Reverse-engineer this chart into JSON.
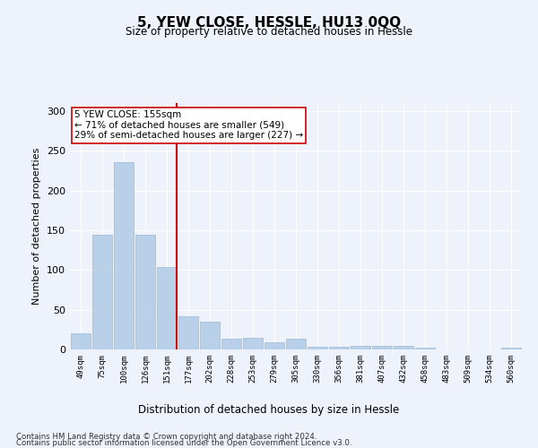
{
  "title": "5, YEW CLOSE, HESSLE, HU13 0QQ",
  "subtitle": "Size of property relative to detached houses in Hessle",
  "xlabel": "Distribution of detached houses by size in Hessle",
  "ylabel": "Number of detached properties",
  "categories": [
    "49sqm",
    "75sqm",
    "100sqm",
    "126sqm",
    "151sqm",
    "177sqm",
    "202sqm",
    "228sqm",
    "253sqm",
    "279sqm",
    "305sqm",
    "330sqm",
    "356sqm",
    "381sqm",
    "407sqm",
    "432sqm",
    "458sqm",
    "483sqm",
    "509sqm",
    "534sqm",
    "560sqm"
  ],
  "values": [
    20,
    144,
    236,
    144,
    104,
    42,
    35,
    14,
    15,
    9,
    14,
    3,
    3,
    4,
    4,
    4,
    2,
    0,
    0,
    0,
    2
  ],
  "bar_color": "#b8d0e8",
  "bar_edge_color": "#9ab8d8",
  "vline_idx": 4,
  "vline_color": "#cc0000",
  "annotation_line1": "5 YEW CLOSE: 155sqm",
  "annotation_line2": "← 71% of detached houses are smaller (549)",
  "annotation_line3": "29% of semi-detached houses are larger (227) →",
  "annotation_box_color": "#ffffff",
  "annotation_box_edge": "#cc0000",
  "ylim": [
    0,
    310
  ],
  "yticks": [
    0,
    50,
    100,
    150,
    200,
    250,
    300
  ],
  "bg_color": "#eef2fb",
  "grid_color": "#ffffff",
  "footer_line1": "Contains HM Land Registry data © Crown copyright and database right 2024.",
  "footer_line2": "Contains public sector information licensed under the Open Government Licence v3.0."
}
